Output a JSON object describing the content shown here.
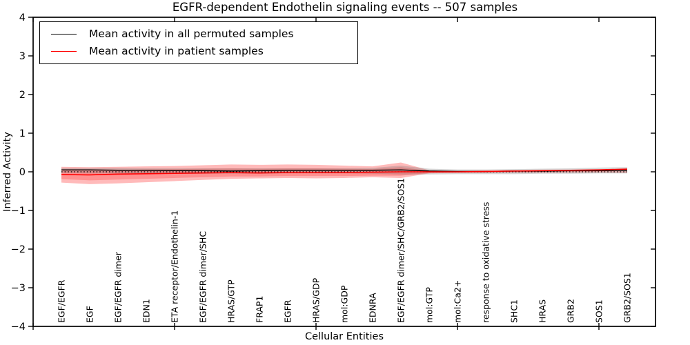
{
  "chart_data": {
    "type": "line",
    "title": "EGFR-dependent Endothelin signaling events -- 507 samples",
    "xlabel": "Cellular Entities",
    "ylabel": "Inferred Activity",
    "xlim": [
      0,
      22
    ],
    "ylim": [
      -4,
      4
    ],
    "grid": false,
    "ytick_values": [
      4,
      3,
      2,
      1,
      0,
      -1,
      -2,
      -3,
      -4
    ],
    "ytick_labels": [
      "4",
      "3",
      "2",
      "1",
      "0",
      "−1",
      "−2",
      "−3",
      "−4"
    ],
    "xtick_values": [
      0,
      5,
      10,
      15,
      20
    ],
    "categories": [
      "EGF/EGFR",
      "EGF",
      "EGF/EGFR dimer",
      "EDN1",
      "ETA receptor/Endothelin-1",
      "EGF/EGFR dimer/SHC",
      "HRAS/GTP",
      "FRAP1",
      "EGFR",
      "HRAS/GDP",
      "mol:GDP",
      "EDNRA",
      "EGF/EGFR dimer/SHC/GRB2/SOS1",
      "mol:GTP",
      "mol:Ca2+",
      "response to oxidative stress",
      "SHC1",
      "HRAS",
      "GRB2",
      "SOS1",
      "GRB2/SOS1"
    ],
    "category_x": [
      1,
      2,
      3,
      4,
      5,
      6,
      7,
      8,
      9,
      10,
      11,
      12,
      13,
      14,
      15,
      16,
      17,
      18,
      19,
      20,
      21
    ],
    "series": [
      {
        "name": "Mean activity in all permuted samples",
        "color": "#000000",
        "width": 1.4,
        "values": [
          0.05,
          0.05,
          0.04,
          0.04,
          0.03,
          0.03,
          0.02,
          0.03,
          0.04,
          0.04,
          0.04,
          0.04,
          0.05,
          0.02,
          0.01,
          0.01,
          0.02,
          0.02,
          0.03,
          0.03,
          0.04
        ]
      },
      {
        "name": "Mean activity in patient samples",
        "color": "#ff0000",
        "width": 1.6,
        "values": [
          -0.07,
          -0.08,
          -0.06,
          -0.05,
          -0.04,
          -0.03,
          -0.02,
          -0.03,
          -0.02,
          -0.02,
          -0.02,
          -0.01,
          0.0,
          0.0,
          0.0,
          0.01,
          0.02,
          0.03,
          0.04,
          0.05,
          0.07
        ]
      }
    ],
    "bands": [
      {
        "name": "patient-range-outer",
        "fill": "rgba(255,0,0,0.27)",
        "upper": [
          0.13,
          0.12,
          0.13,
          0.14,
          0.15,
          0.17,
          0.19,
          0.18,
          0.19,
          0.18,
          0.16,
          0.14,
          0.24,
          0.04,
          0.03,
          0.03,
          0.03,
          0.04,
          0.05,
          0.06,
          0.08
        ],
        "lower": [
          -0.28,
          -0.32,
          -0.3,
          -0.27,
          -0.24,
          -0.21,
          -0.18,
          -0.17,
          -0.16,
          -0.17,
          -0.16,
          -0.14,
          -0.16,
          -0.04,
          -0.03,
          -0.03,
          -0.02,
          -0.02,
          -0.02,
          -0.02,
          -0.03
        ]
      },
      {
        "name": "patient-range-inner",
        "fill": "rgba(255,0,0,0.22)",
        "upper": [
          0.05,
          0.04,
          0.05,
          0.06,
          0.07,
          0.08,
          0.09,
          0.08,
          0.09,
          0.09,
          0.08,
          0.07,
          0.12,
          0.02,
          0.015,
          0.015,
          0.02,
          0.03,
          0.04,
          0.05,
          0.07
        ],
        "lower": [
          -0.19,
          -0.22,
          -0.2,
          -0.18,
          -0.16,
          -0.14,
          -0.12,
          -0.12,
          -0.11,
          -0.11,
          -0.11,
          -0.1,
          -0.1,
          -0.03,
          -0.02,
          -0.02,
          -0.015,
          -0.01,
          0.0,
          0.01,
          0.04
        ]
      },
      {
        "name": "permuted-range",
        "fill": "rgba(110,110,110,0.28)",
        "upper": [
          0.1,
          0.1,
          0.1,
          0.09,
          0.09,
          0.09,
          0.09,
          0.09,
          0.09,
          0.09,
          0.09,
          0.1,
          0.16,
          0.08,
          0.06,
          0.06,
          0.07,
          0.08,
          0.09,
          0.11,
          0.12
        ],
        "lower": [
          -0.03,
          -0.04,
          -0.04,
          -0.04,
          -0.05,
          -0.05,
          -0.05,
          -0.05,
          -0.04,
          -0.04,
          -0.04,
          -0.05,
          -0.07,
          -0.07,
          -0.06,
          -0.06,
          -0.06,
          -0.05,
          -0.05,
          -0.04,
          -0.04
        ]
      }
    ],
    "zero_line": {
      "y": 0,
      "color": "#000000",
      "style": "dotted"
    },
    "frame_color": "#000000",
    "legend": {
      "position": "upper-left",
      "items": [
        {
          "label": "Mean activity in all permuted samples",
          "color": "#000000"
        },
        {
          "label": "Mean activity in patient samples",
          "color": "#ff0000"
        }
      ]
    }
  }
}
